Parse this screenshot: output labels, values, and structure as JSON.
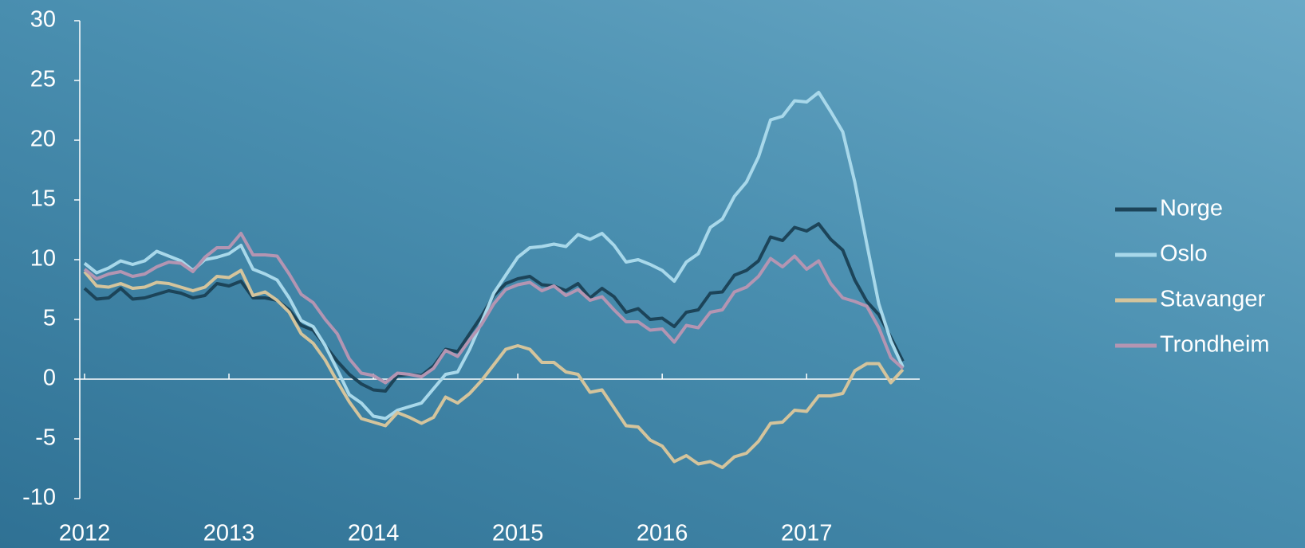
{
  "chart_data": {
    "type": "line",
    "x": [
      2012,
      2012.0833,
      2012.1667,
      2012.25,
      2012.3333,
      2012.4167,
      2012.5,
      2012.5833,
      2012.6667,
      2012.75,
      2012.8333,
      2012.9167,
      2013,
      2013.0833,
      2013.1667,
      2013.25,
      2013.3333,
      2013.4167,
      2013.5,
      2013.5833,
      2013.6667,
      2013.75,
      2013.8333,
      2013.9167,
      2014,
      2014.0833,
      2014.1667,
      2014.25,
      2014.3333,
      2014.4167,
      2014.5,
      2014.5833,
      2014.6667,
      2014.75,
      2014.8333,
      2014.9167,
      2015,
      2015.0833,
      2015.1667,
      2015.25,
      2015.3333,
      2015.4167,
      2015.5,
      2015.5833,
      2015.6667,
      2015.75,
      2015.8333,
      2015.9167,
      2016,
      2016.0833,
      2016.1667,
      2016.25,
      2016.3333,
      2016.4167,
      2016.5,
      2016.5833,
      2016.6667,
      2016.75,
      2016.8333,
      2016.9167,
      2017,
      2017.0833,
      2017.1667,
      2017.25,
      2017.3333,
      2017.4167,
      2017.5,
      2017.5833,
      2017.6667
    ],
    "series": [
      {
        "name": "Norge",
        "color": "#1c4459",
        "values": [
          7.6,
          6.7,
          6.8,
          7.6,
          6.7,
          6.8,
          7.1,
          7.4,
          7.2,
          6.8,
          7.0,
          8.0,
          7.8,
          8.2,
          6.8,
          6.8,
          6.6,
          5.8,
          4.5,
          4.1,
          2.8,
          1.5,
          0.4,
          -0.4,
          -0.9,
          -1.0,
          0.3,
          0.4,
          0.3,
          1.1,
          2.5,
          2.3,
          3.8,
          5.3,
          7.0,
          8.0,
          8.4,
          8.6,
          7.9,
          7.8,
          7.4,
          8.0,
          6.8,
          7.6,
          6.9,
          5.6,
          5.9,
          5.0,
          5.1,
          4.4,
          5.6,
          5.8,
          7.2,
          7.3,
          8.7,
          9.1,
          9.9,
          11.9,
          11.6,
          12.7,
          12.4,
          13.0,
          11.7,
          10.8,
          8.3,
          6.5,
          5.4,
          3.5,
          1.5
        ]
      },
      {
        "name": "Oslo",
        "color": "#a8d8ea",
        "values": [
          9.7,
          8.9,
          9.3,
          9.9,
          9.6,
          9.9,
          10.7,
          10.3,
          9.9,
          9.1,
          10.0,
          10.2,
          10.5,
          11.2,
          9.2,
          8.8,
          8.3,
          6.8,
          4.9,
          4.4,
          2.8,
          0.8,
          -1.3,
          -2.0,
          -3.1,
          -3.3,
          -2.6,
          -2.3,
          -2.0,
          -0.8,
          0.4,
          0.6,
          2.5,
          4.8,
          7.2,
          8.7,
          10.2,
          11.0,
          11.1,
          11.3,
          11.1,
          12.1,
          11.7,
          12.2,
          11.2,
          9.8,
          10.0,
          9.6,
          9.1,
          8.2,
          9.8,
          10.5,
          12.7,
          13.4,
          15.3,
          16.5,
          18.6,
          21.7,
          22.0,
          23.3,
          23.2,
          24.0,
          22.4,
          20.7,
          16.5,
          11.3,
          6.3,
          3.2,
          1.0
        ]
      },
      {
        "name": "Stavanger",
        "color": "#d4c49c",
        "values": [
          9.0,
          7.8,
          7.7,
          8.0,
          7.6,
          7.7,
          8.1,
          8.0,
          7.7,
          7.4,
          7.7,
          8.6,
          8.5,
          9.1,
          7.0,
          7.3,
          6.6,
          5.6,
          3.8,
          3.0,
          1.6,
          -0.2,
          -1.9,
          -3.3,
          -3.6,
          -3.9,
          -2.8,
          -3.2,
          -3.7,
          -3.2,
          -1.5,
          -2.0,
          -1.2,
          -0.1,
          1.2,
          2.5,
          2.8,
          2.5,
          1.4,
          1.4,
          0.6,
          0.4,
          -1.1,
          -0.9,
          -2.4,
          -3.9,
          -4.0,
          -5.1,
          -5.6,
          -6.9,
          -6.4,
          -7.1,
          -6.9,
          -7.4,
          -6.5,
          -6.2,
          -5.2,
          -3.7,
          -3.6,
          -2.6,
          -2.7,
          -1.4,
          -1.4,
          -1.2,
          0.7,
          1.3,
          1.3,
          -0.3,
          0.8
        ]
      },
      {
        "name": "Trondheim",
        "color": "#b495b2",
        "values": [
          9.2,
          8.4,
          8.8,
          9.0,
          8.6,
          8.8,
          9.4,
          9.8,
          9.7,
          9.0,
          10.2,
          11.0,
          11.0,
          12.2,
          10.4,
          10.4,
          10.3,
          8.8,
          7.1,
          6.4,
          5.0,
          3.8,
          1.7,
          0.5,
          0.3,
          -0.3,
          0.5,
          0.4,
          0.2,
          0.9,
          2.4,
          1.9,
          3.3,
          4.6,
          6.3,
          7.5,
          7.9,
          8.1,
          7.4,
          7.8,
          7.0,
          7.5,
          6.6,
          6.9,
          5.8,
          4.8,
          4.8,
          4.1,
          4.2,
          3.1,
          4.5,
          4.3,
          5.6,
          5.8,
          7.3,
          7.7,
          8.6,
          10.1,
          9.4,
          10.3,
          9.2,
          9.9,
          8.0,
          6.8,
          6.5,
          6.1,
          4.3,
          1.8,
          0.9
        ]
      }
    ],
    "xlim": [
      2012,
      2017.75
    ],
    "xticks": [
      2012,
      2013,
      2014,
      2015,
      2016,
      2017
    ],
    "ylim": [
      -10,
      30
    ],
    "yticks": [
      -10,
      -5,
      0,
      5,
      10,
      15,
      20,
      25,
      30
    ],
    "grid": false,
    "legend": "right"
  }
}
